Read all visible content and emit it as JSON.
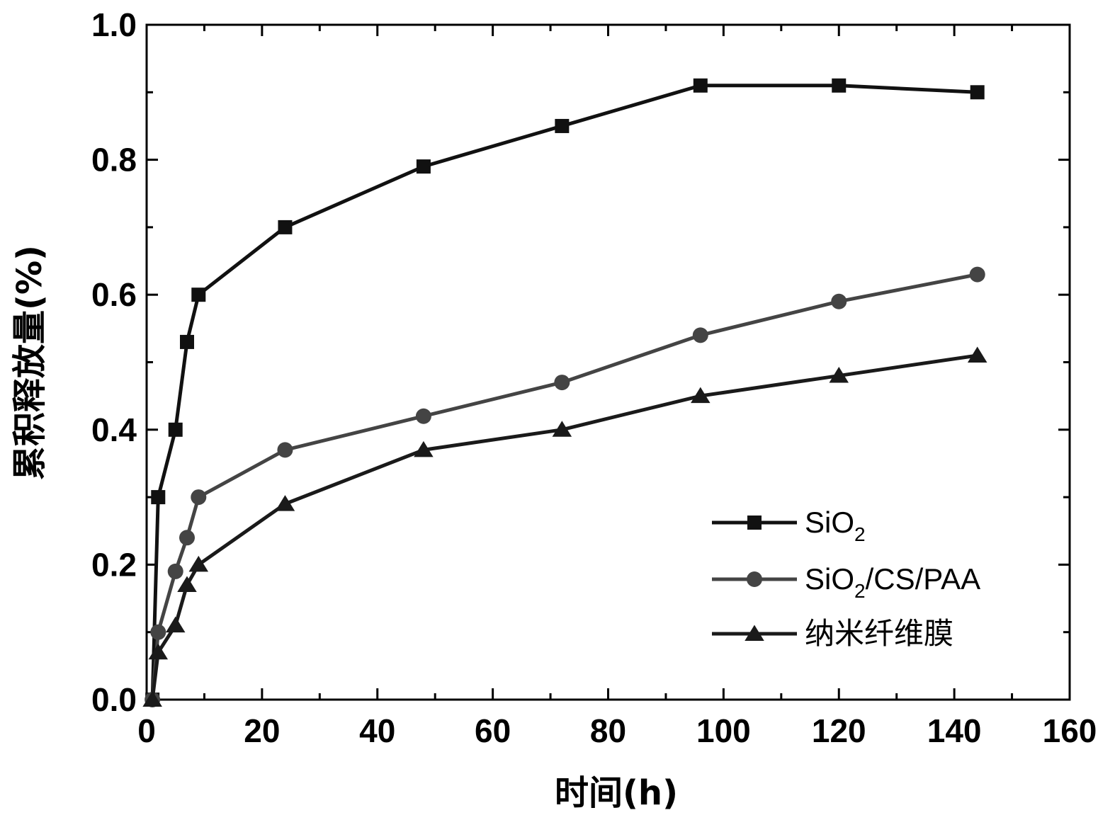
{
  "chart_data": {
    "type": "line",
    "title": "",
    "xlabel": "时间(h)",
    "ylabel": "累积释放量(%)",
    "xlim": [
      0,
      160
    ],
    "ylim": [
      0,
      1.0
    ],
    "xticks": [
      0,
      20,
      40,
      60,
      80,
      100,
      120,
      140,
      160
    ],
    "yticks": [
      0.0,
      0.2,
      0.4,
      0.6,
      0.8,
      1.0
    ],
    "ytick_labels": [
      "0.0",
      "0.2",
      "0.4",
      "0.6",
      "0.8",
      "1.0"
    ],
    "grid": false,
    "legend_position": "bottom-right",
    "series": [
      {
        "name": "SiO2",
        "name_parts": {
          "base": "SiO",
          "sub": "2",
          "rest": ""
        },
        "marker": "square",
        "color": "#111111",
        "points": [
          [
            1,
            0
          ],
          [
            2,
            0.3
          ],
          [
            5,
            0.4
          ],
          [
            7,
            0.53
          ],
          [
            9,
            0.6
          ],
          [
            24,
            0.7
          ],
          [
            48,
            0.79
          ],
          [
            72,
            0.85
          ],
          [
            96,
            0.91
          ],
          [
            120,
            0.91
          ],
          [
            144,
            0.9
          ]
        ]
      },
      {
        "name": "SiO2/CS/PAA",
        "name_parts": {
          "base": "SiO",
          "sub": "2",
          "rest": "/CS/PAA"
        },
        "marker": "circle",
        "color": "#444444",
        "points": [
          [
            1,
            0
          ],
          [
            2,
            0.1
          ],
          [
            5,
            0.19
          ],
          [
            7,
            0.24
          ],
          [
            9,
            0.3
          ],
          [
            24,
            0.37
          ],
          [
            48,
            0.42
          ],
          [
            72,
            0.47
          ],
          [
            96,
            0.54
          ],
          [
            120,
            0.59
          ],
          [
            144,
            0.63
          ]
        ]
      },
      {
        "name": "纳米纤维膜",
        "name_parts": {
          "base": "纳米纤维膜",
          "sub": "",
          "rest": ""
        },
        "marker": "triangle",
        "color": "#1a1a1a",
        "points": [
          [
            1,
            0
          ],
          [
            2,
            0.07
          ],
          [
            5,
            0.11
          ],
          [
            7,
            0.17
          ],
          [
            9,
            0.2
          ],
          [
            24,
            0.29
          ],
          [
            48,
            0.37
          ],
          [
            72,
            0.4
          ],
          [
            96,
            0.45
          ],
          [
            120,
            0.48
          ],
          [
            144,
            0.51
          ]
        ]
      }
    ]
  }
}
